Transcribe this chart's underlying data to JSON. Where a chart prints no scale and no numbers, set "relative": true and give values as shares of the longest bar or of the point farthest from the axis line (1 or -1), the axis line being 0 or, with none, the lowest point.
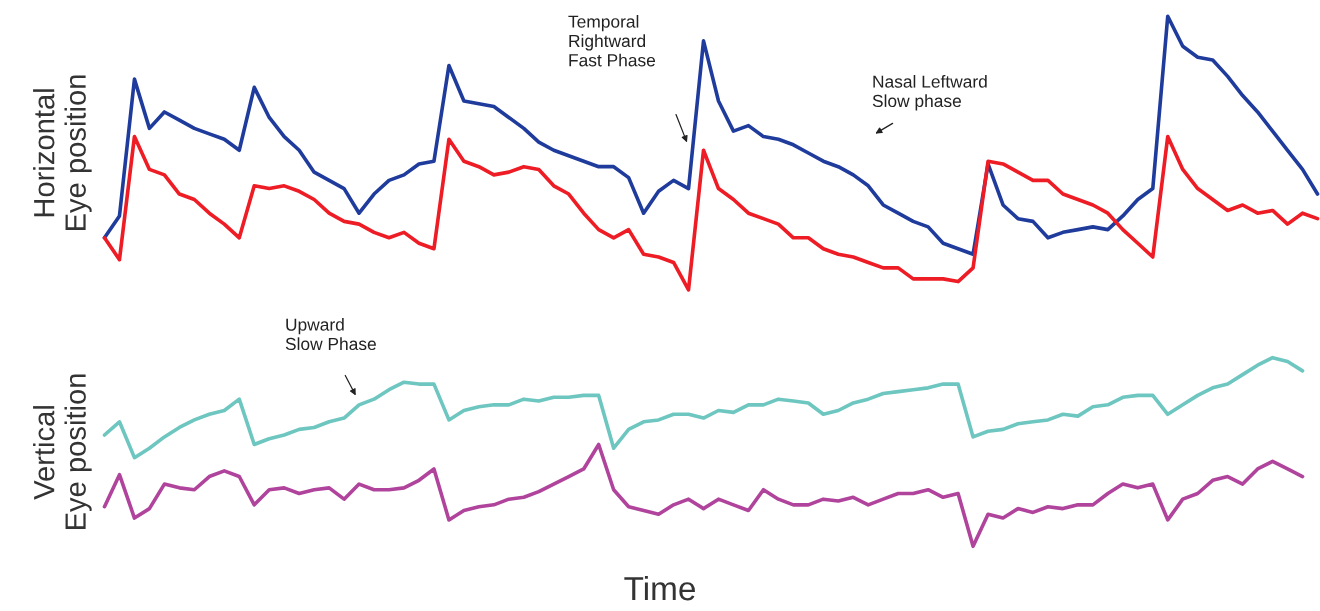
{
  "chart_data": [
    {
      "type": "line",
      "relative": true,
      "ylabel": "Horizontal\nEye position",
      "annotations": [
        "Temporal\nRightward\nFast Phase",
        "Nasal Leftward\nSlow phase"
      ],
      "categories": [
        null,
        null,
        null,
        null,
        null,
        null,
        null,
        null,
        null,
        null,
        null,
        null,
        null,
        null,
        null,
        null,
        null,
        null,
        null,
        null,
        null,
        null,
        null,
        null,
        null,
        null,
        null,
        null,
        null,
        null,
        null,
        null,
        null,
        null,
        null,
        null,
        null,
        null,
        null,
        null,
        null,
        null,
        null,
        null,
        null,
        null,
        null,
        null,
        null,
        null,
        null,
        null,
        null,
        null,
        null,
        null,
        null,
        null,
        null,
        null,
        null,
        null,
        null,
        null,
        null,
        null,
        null,
        null,
        null,
        null,
        null,
        null,
        null,
        null,
        null,
        null,
        null,
        null,
        null,
        null,
        null,
        null
      ],
      "series": [
        {
          "color": "#1f3c9c",
          "values": [
            0.19,
            0.27,
            0.77,
            0.59,
            0.65,
            0.62,
            0.59,
            0.57,
            0.55,
            0.51,
            0.74,
            0.63,
            0.56,
            0.51,
            0.43,
            0.4,
            0.37,
            0.28,
            0.35,
            0.4,
            0.42,
            0.46,
            0.47,
            0.82,
            0.69,
            0.68,
            0.67,
            0.63,
            0.59,
            0.54,
            0.51,
            0.49,
            0.47,
            0.45,
            0.45,
            0.41,
            0.28,
            0.36,
            0.4,
            0.37,
            0.91,
            0.69,
            0.58,
            0.6,
            0.56,
            0.55,
            0.53,
            0.5,
            0.47,
            0.45,
            0.42,
            0.38,
            0.31,
            0.28,
            0.25,
            0.23,
            0.17,
            0.15,
            0.13,
            0.46,
            0.31,
            0.26,
            0.25,
            0.19,
            0.21,
            0.22,
            0.23,
            0.22,
            0.27,
            0.33,
            0.37,
            1,
            0.89,
            0.85,
            0.84,
            0.78,
            0.71,
            0.65,
            0.58,
            0.51,
            0.44,
            0.35
          ]
        },
        {
          "color": "#ee1c24",
          "values": [
            0.19,
            0.11,
            0.56,
            0.44,
            0.42,
            0.35,
            0.33,
            0.28,
            0.24,
            0.19,
            0.38,
            0.37,
            0.38,
            0.36,
            0.33,
            0.28,
            0.25,
            0.24,
            0.21,
            0.19,
            0.21,
            0.17,
            0.15,
            0.55,
            0.47,
            0.45,
            0.42,
            0.43,
            0.45,
            0.44,
            0.38,
            0.35,
            0.28,
            0.22,
            0.19,
            0.22,
            0.13,
            0.12,
            0.1,
            0,
            0.51,
            0.37,
            0.33,
            0.28,
            0.26,
            0.24,
            0.19,
            0.19,
            0.15,
            0.13,
            0.12,
            0.1,
            0.08,
            0.08,
            0.04,
            0.04,
            0.04,
            0.03,
            0.08,
            0.47,
            0.46,
            0.43,
            0.4,
            0.4,
            0.35,
            0.33,
            0.31,
            0.28,
            0.22,
            0.17,
            0.12,
            0.56,
            0.44,
            0.37,
            0.33,
            0.29,
            0.31,
            0.28,
            0.29,
            0.24,
            0.28,
            0.26
          ]
        }
      ]
    },
    {
      "type": "line",
      "relative": true,
      "ylabel": "Vertical\nEye position",
      "xlabel": "Time",
      "annotations": [
        "Upward\nSlow Phase"
      ],
      "categories": [
        null,
        null,
        null,
        null,
        null,
        null,
        null,
        null,
        null,
        null,
        null,
        null,
        null,
        null,
        null,
        null,
        null,
        null,
        null,
        null,
        null,
        null,
        null,
        null,
        null,
        null,
        null,
        null,
        null,
        null,
        null,
        null,
        null,
        null,
        null,
        null,
        null,
        null,
        null,
        null,
        null,
        null,
        null,
        null,
        null,
        null,
        null,
        null,
        null,
        null,
        null,
        null,
        null,
        null,
        null,
        null,
        null,
        null,
        null,
        null,
        null,
        null,
        null,
        null,
        null,
        null,
        null,
        null,
        null,
        null,
        null,
        null,
        null,
        null,
        null,
        null,
        null,
        null,
        null,
        null,
        null,
        null
      ],
      "series": [
        {
          "color": "#6ec6c0",
          "values": [
            0.59,
            0.66,
            0.47,
            0.52,
            0.58,
            0.63,
            0.67,
            0.7,
            0.72,
            0.78,
            0.54,
            0.57,
            0.59,
            0.62,
            0.63,
            0.66,
            0.68,
            0.75,
            0.78,
            0.83,
            0.87,
            0.86,
            0.86,
            0.67,
            0.72,
            0.74,
            0.75,
            0.75,
            0.78,
            0.77,
            0.79,
            0.79,
            0.8,
            0.8,
            0.52,
            0.62,
            0.66,
            0.67,
            0.7,
            0.7,
            0.68,
            0.72,
            0.71,
            0.75,
            0.75,
            0.78,
            0.77,
            0.76,
            0.7,
            0.72,
            0.76,
            0.78,
            0.81,
            0.82,
            0.83,
            0.84,
            0.86,
            0.86,
            0.58,
            0.61,
            0.62,
            0.65,
            0.66,
            0.67,
            0.7,
            0.69,
            0.74,
            0.75,
            0.79,
            0.8,
            0.8,
            0.7,
            0.75,
            0.8,
            0.84,
            0.86,
            0.91,
            0.96,
            1,
            0.98,
            0.93,
            null
          ]
        },
        {
          "color": "#b0449c",
          "values": [
            0.21,
            0.38,
            0.15,
            0.2,
            0.33,
            0.31,
            0.3,
            0.37,
            0.4,
            0.37,
            0.22,
            0.3,
            0.31,
            0.28,
            0.3,
            0.31,
            0.25,
            0.33,
            0.3,
            0.3,
            0.31,
            0.35,
            0.41,
            0.14,
            0.19,
            0.21,
            0.22,
            0.25,
            0.26,
            0.29,
            0.33,
            0.37,
            0.41,
            0.54,
            0.3,
            0.21,
            0.19,
            0.17,
            0.22,
            0.25,
            0.2,
            0.25,
            0.22,
            0.19,
            0.3,
            0.25,
            0.22,
            0.22,
            0.25,
            0.24,
            0.26,
            0.22,
            0.25,
            0.28,
            0.28,
            0.3,
            0.26,
            0.28,
            0,
            0.17,
            0.15,
            0.2,
            0.18,
            0.21,
            0.2,
            0.22,
            0.22,
            0.28,
            0.33,
            0.31,
            0.33,
            0.14,
            0.25,
            0.28,
            0.35,
            0.37,
            0.33,
            0.41,
            0.45,
            0.41,
            0.37,
            null
          ]
        }
      ]
    }
  ]
}
